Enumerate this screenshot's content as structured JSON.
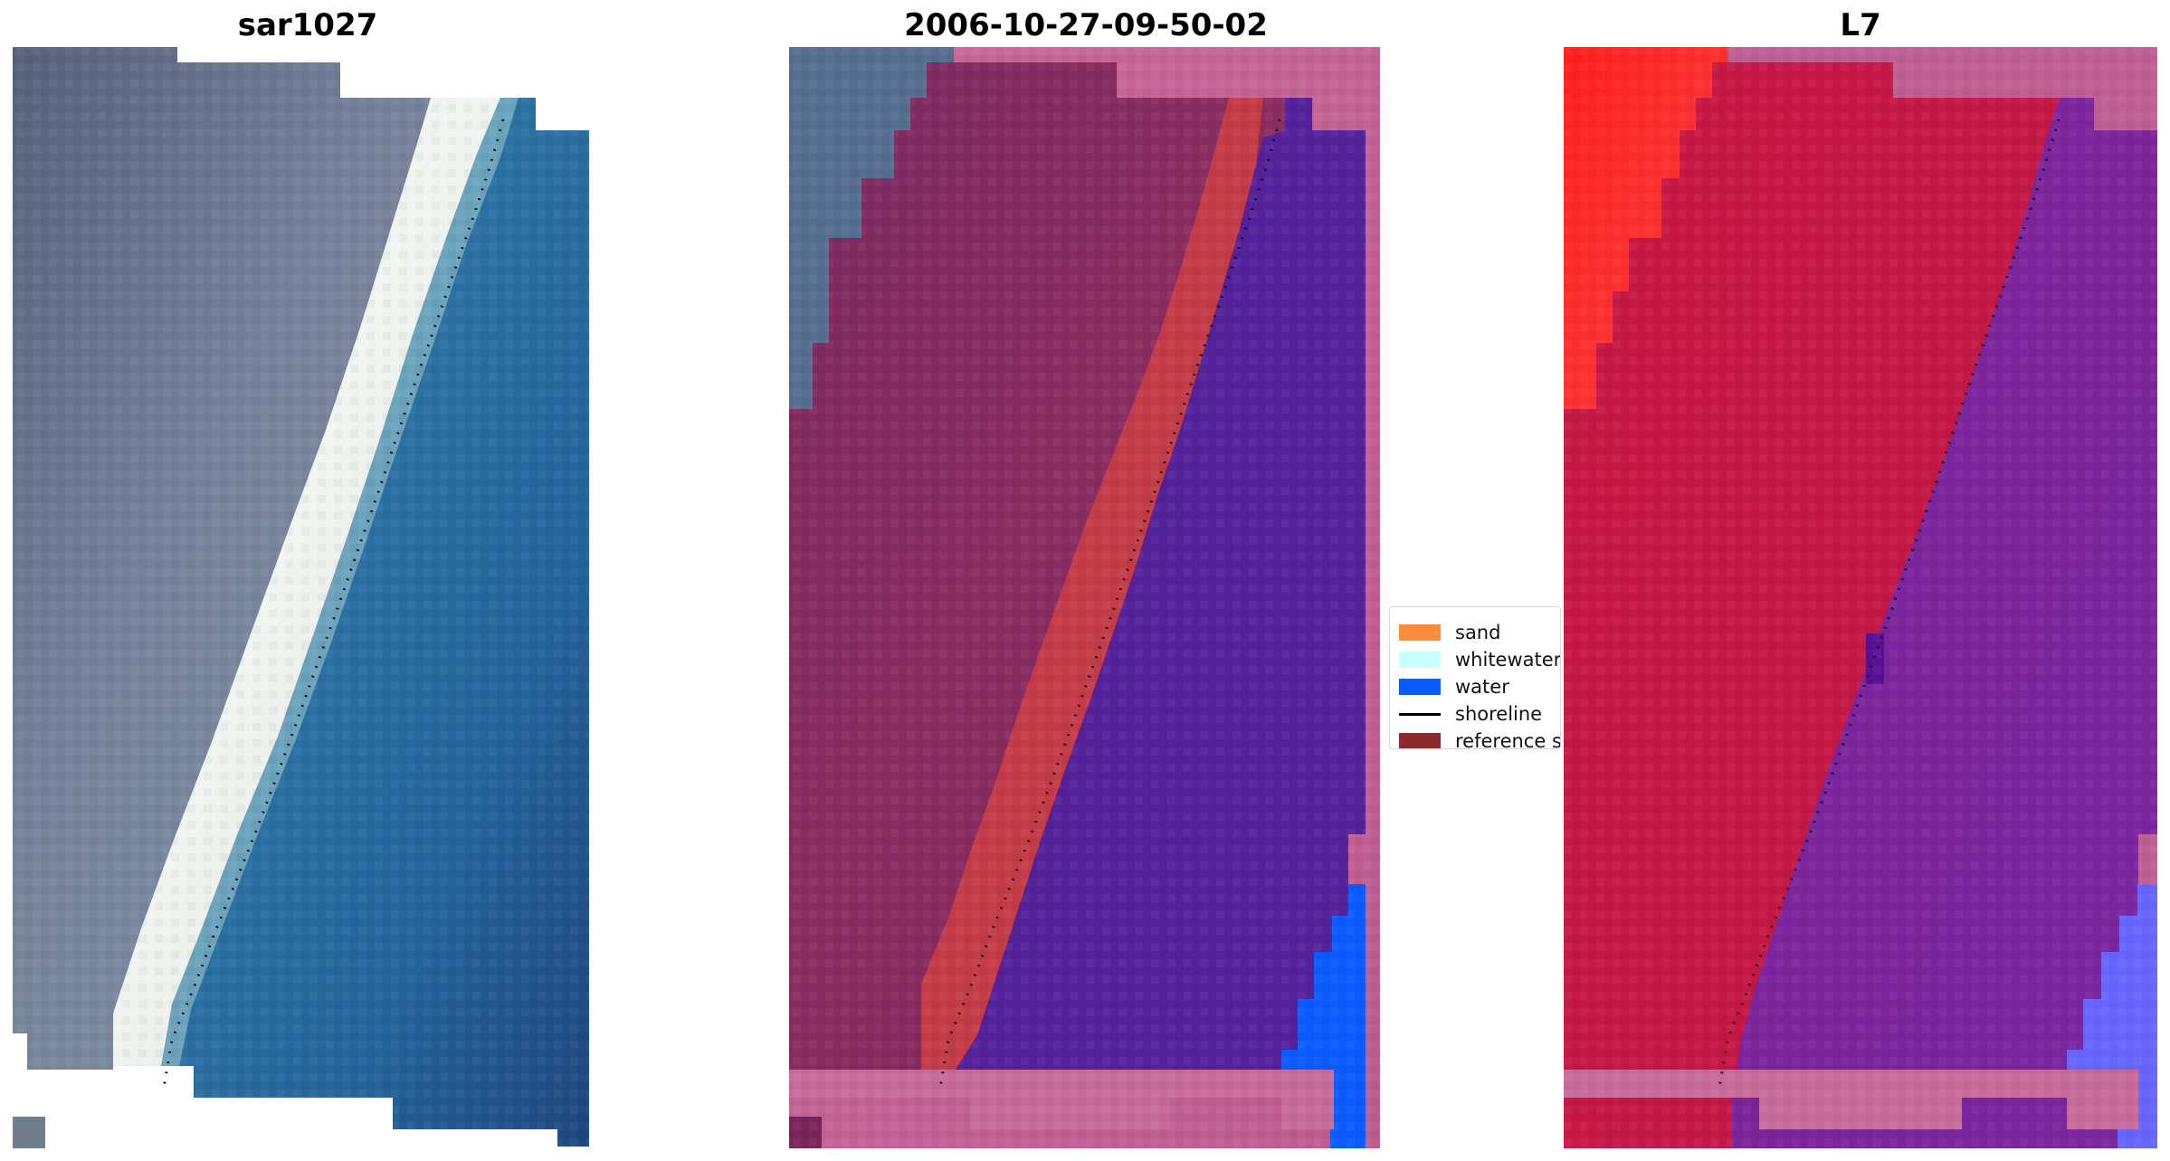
{
  "figure": {
    "panels": [
      {
        "id": "left",
        "title": "sar1027",
        "image_kind": "rgb-satellite"
      },
      {
        "id": "middle",
        "title": "2006-10-27-09-50-02",
        "image_kind": "classified-overlay"
      },
      {
        "id": "right",
        "title": "L7",
        "image_kind": "index-map"
      }
    ],
    "legend": {
      "items": [
        {
          "label": "sand",
          "color": "#ff8c3a",
          "kind": "patch"
        },
        {
          "label": "whitewater",
          "color": "#c8ffff",
          "kind": "patch"
        },
        {
          "label": "water",
          "color": "#0a5cff",
          "kind": "patch"
        },
        {
          "label": "shoreline",
          "color": "#000000",
          "kind": "line"
        },
        {
          "label": "reference sh",
          "color": "#8b2a2e",
          "kind": "patch"
        }
      ]
    },
    "colors": {
      "background": "#ffffff",
      "rgb_land": "#6d7b95",
      "rgb_sand": "#e9eee7",
      "rgb_water": "#2b6a97",
      "classified_land": "#87295e",
      "classified_sand": "#c33c48",
      "classified_water": "#55229b",
      "water_mask": "#0a5cff",
      "cloud_mask": "#bf5f93",
      "index_land": "#c51646",
      "index_water": "#7f229d",
      "index_red_hotspot": "#ff2020",
      "index_blue_water": "#6666ff",
      "shoreline": "#000000"
    }
  }
}
